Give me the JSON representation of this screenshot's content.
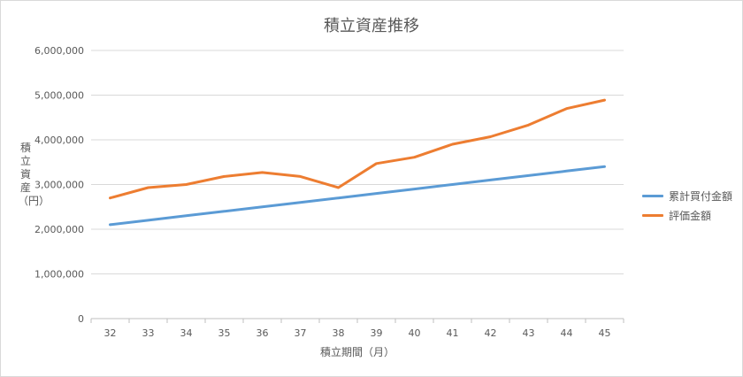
{
  "chart_data": {
    "type": "line",
    "title": "積立資産推移",
    "xlabel": "積立期間（月）",
    "ylabel": "積立資産（円）",
    "x": [
      32,
      33,
      34,
      35,
      36,
      37,
      38,
      39,
      40,
      41,
      42,
      43,
      44,
      45
    ],
    "ylim": [
      0,
      6000000
    ],
    "yticks": [
      0,
      1000000,
      2000000,
      3000000,
      4000000,
      5000000,
      6000000
    ],
    "ytick_labels": [
      "0",
      "1,000,000",
      "2,000,000",
      "3,000,000",
      "4,000,000",
      "5,000,000",
      "6,000,000"
    ],
    "grid": true,
    "legend": "right",
    "series": [
      {
        "name": "累計買付金額",
        "color": "#5b9bd5",
        "values": [
          2100000,
          2200000,
          2300000,
          2400000,
          2500000,
          2600000,
          2700000,
          2800000,
          2900000,
          3000000,
          3100000,
          3200000,
          3300000,
          3400000
        ]
      },
      {
        "name": "評価金額",
        "color": "#ed7d31",
        "values": [
          2700000,
          2930000,
          3000000,
          3180000,
          3270000,
          3180000,
          2930000,
          3470000,
          3610000,
          3900000,
          4070000,
          4330000,
          4700000,
          4890000
        ]
      }
    ]
  }
}
